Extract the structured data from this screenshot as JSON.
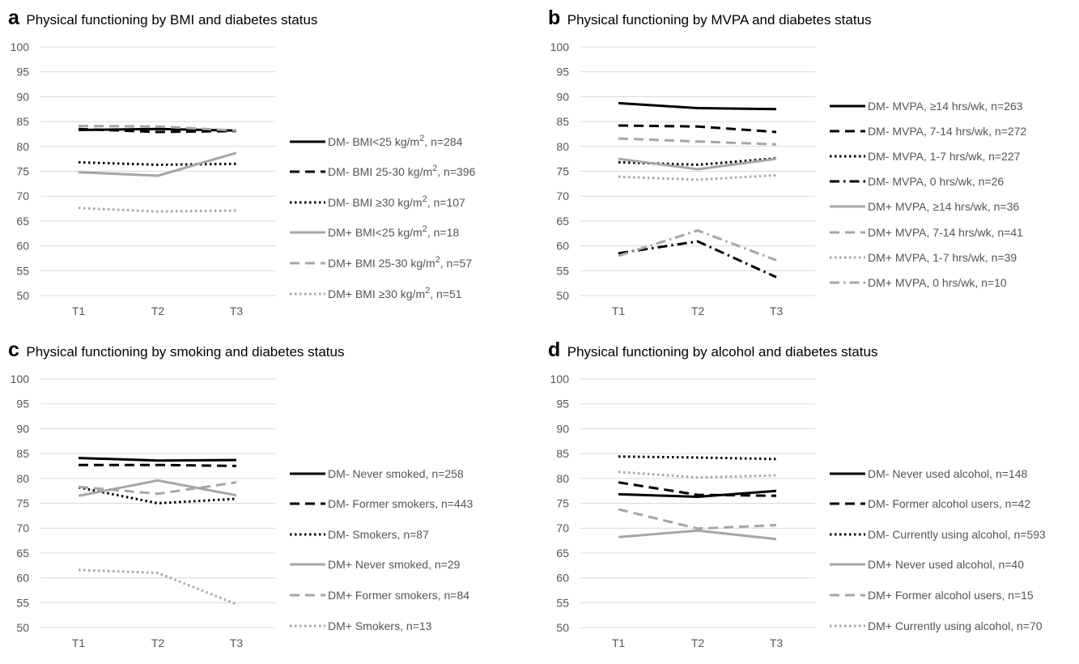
{
  "chart_data": [
    {
      "type": "line",
      "panel": "a",
      "title": "Physical functioning by BMI and diabetes status",
      "x": [
        "T1",
        "T2",
        "T3"
      ],
      "ylim": [
        50,
        100
      ],
      "yticks": [
        "100",
        "95",
        "90",
        "85",
        "80",
        "75",
        "70",
        "65",
        "60",
        "55",
        "50"
      ],
      "grid": true,
      "legend_position": "right",
      "series": [
        {
          "name": "DM- BMI<25 kg/m², n=284",
          "label_pre": "DM-  BMI<25 kg/m",
          "label_sup": "2",
          "label_post": ", n=284",
          "values": [
            83.3,
            83.5,
            83.2
          ],
          "color": "#000000",
          "dash": "solid"
        },
        {
          "name": "DM- BMI 25-30 kg/m², n=396",
          "label_pre": "DM-  BMI 25-30 kg/m",
          "label_sup": "2",
          "label_post": ", n=396",
          "values": [
            83.5,
            82.9,
            83.1
          ],
          "color": "#000000",
          "dash": "dash"
        },
        {
          "name": "DM- BMI ≥30 kg/m², n=107",
          "label_pre": "DM-  BMI ≥30 kg/m",
          "label_sup": "2",
          "label_post": ", n=107",
          "values": [
            76.8,
            76.3,
            76.5
          ],
          "color": "#000000",
          "dash": "dot"
        },
        {
          "name": "DM+ BMI<25 kg/m², n=18",
          "label_pre": "DM+ BMI<25 kg/m",
          "label_sup": "2",
          "label_post": ", n=18",
          "values": [
            74.8,
            74.1,
            78.7
          ],
          "color": "#a6a6a6",
          "dash": "solid"
        },
        {
          "name": "DM+ BMI 25-30 kg/m², n=57",
          "label_pre": "DM+ BMI 25-30 kg/m",
          "label_sup": "2",
          "label_post": ", n=57",
          "values": [
            84.1,
            84.0,
            83.2
          ],
          "color": "#a6a6a6",
          "dash": "dash"
        },
        {
          "name": "DM+ BMI ≥30 kg/m², n=51",
          "label_pre": "DM+ BMI ≥30 kg/m",
          "label_sup": "2",
          "label_post": ", n=51",
          "values": [
            67.6,
            66.9,
            67.1
          ],
          "color": "#a6a6a6",
          "dash": "dot"
        }
      ]
    },
    {
      "type": "line",
      "panel": "b",
      "title": "Physical functioning by MVPA and diabetes status",
      "x": [
        "T1",
        "T2",
        "T3"
      ],
      "ylim": [
        50,
        100
      ],
      "yticks": [
        "100",
        "95",
        "90",
        "85",
        "80",
        "75",
        "70",
        "65",
        "60",
        "55",
        "50"
      ],
      "grid": true,
      "legend_position": "right",
      "series": [
        {
          "name": "DM- MVPA, ≥14 hrs/wk, n=263",
          "label_pre": "DM-  MVPA, ≥14 hrs/wk, n=263",
          "values": [
            88.7,
            87.7,
            87.5
          ],
          "color": "#000000",
          "dash": "solid"
        },
        {
          "name": "DM- MVPA, 7-14 hrs/wk, n=272",
          "label_pre": "DM-  MVPA, 7-14 hrs/wk, n=272",
          "values": [
            84.2,
            84.0,
            82.9
          ],
          "color": "#000000",
          "dash": "dash"
        },
        {
          "name": "DM- MVPA, 1-7 hrs/wk, n=227",
          "label_pre": "DM-  MVPA, 1-7 hrs/wk, n=227",
          "values": [
            76.8,
            76.3,
            77.6
          ],
          "color": "#000000",
          "dash": "dot"
        },
        {
          "name": "DM- MVPA, 0 hrs/wk, n=26",
          "label_pre": "DM-  MVPA, 0 hrs/wk, n=26",
          "values": [
            58.5,
            60.9,
            53.7
          ],
          "color": "#000000",
          "dash": "dashdot"
        },
        {
          "name": "DM+ MVPA, ≥14 hrs/wk, n=36",
          "label_pre": "DM+ MVPA, ≥14 hrs/wk, n=36",
          "values": [
            77.5,
            75.4,
            77.5
          ],
          "color": "#a6a6a6",
          "dash": "solid"
        },
        {
          "name": "DM+ MVPA, 7-14 hrs/wk, n=41",
          "label_pre": "DM+ MVPA, 7-14 hrs/wk, n=41",
          "values": [
            81.6,
            81.0,
            80.4
          ],
          "color": "#a6a6a6",
          "dash": "dash"
        },
        {
          "name": "DM+ MVPA, 1-7 hrs/wk, n=39",
          "label_pre": "DM+ MVPA, 1-7 hrs/wk, n=39",
          "values": [
            73.9,
            73.3,
            74.2
          ],
          "color": "#a6a6a6",
          "dash": "dot"
        },
        {
          "name": "DM+ MVPA, 0 hrs/wk, n=10",
          "label_pre": "DM+ MVPA, 0 hrs/wk, n=10",
          "values": [
            58.0,
            63.1,
            57.1
          ],
          "color": "#a6a6a6",
          "dash": "dashdot"
        }
      ]
    },
    {
      "type": "line",
      "panel": "c",
      "title": "Physical functioning by smoking and diabetes status",
      "x": [
        "T1",
        "T2",
        "T3"
      ],
      "ylim": [
        50,
        100
      ],
      "yticks": [
        "100",
        "95",
        "90",
        "85",
        "80",
        "75",
        "70",
        "65",
        "60",
        "55",
        "50"
      ],
      "grid": true,
      "legend_position": "right",
      "series": [
        {
          "name": "DM- Never smoked, n=258",
          "label_pre": "DM-  Never smoked, n=258",
          "values": [
            84.1,
            83.6,
            83.7
          ],
          "color": "#000000",
          "dash": "solid"
        },
        {
          "name": "DM- Former smokers, n=443",
          "label_pre": "DM-  Former smokers, n=443",
          "values": [
            82.7,
            82.7,
            82.5
          ],
          "color": "#000000",
          "dash": "dash"
        },
        {
          "name": "DM- Smokers, n=87",
          "label_pre": "DM-  Smokers, n=87",
          "values": [
            78.2,
            75.0,
            75.9
          ],
          "color": "#000000",
          "dash": "dot"
        },
        {
          "name": "DM+ Never smoked, n=29",
          "label_pre": "DM+ Never smoked, n=29",
          "values": [
            76.5,
            79.6,
            76.6
          ],
          "color": "#a6a6a6",
          "dash": "solid"
        },
        {
          "name": "DM+ Former smokers, n=84",
          "label_pre": "DM+ Former smokers, n=84",
          "values": [
            78.3,
            76.9,
            79.2
          ],
          "color": "#a6a6a6",
          "dash": "dash"
        },
        {
          "name": "DM+ Smokers, n=13",
          "label_pre": "DM+ Smokers, n=13",
          "values": [
            61.6,
            61.0,
            54.7
          ],
          "color": "#a6a6a6",
          "dash": "dot"
        }
      ]
    },
    {
      "type": "line",
      "panel": "d",
      "title": "Physical functioning by alcohol and diabetes status",
      "x": [
        "T1",
        "T2",
        "T3"
      ],
      "ylim": [
        50,
        100
      ],
      "yticks": [
        "100",
        "95",
        "90",
        "85",
        "80",
        "75",
        "70",
        "65",
        "60",
        "55",
        "50"
      ],
      "grid": true,
      "legend_position": "right",
      "series": [
        {
          "name": "DM- Never used alcohol, n=148",
          "label_pre": "DM-  Never used alcohol, n=148",
          "values": [
            76.8,
            76.3,
            77.5
          ],
          "color": "#000000",
          "dash": "solid"
        },
        {
          "name": "DM- Former alcohol users, n=42",
          "label_pre": "DM-  Former alcohol users, n=42",
          "values": [
            79.2,
            76.7,
            76.5
          ],
          "color": "#000000",
          "dash": "dash"
        },
        {
          "name": "DM- Currently using alcohol, n=593",
          "label_pre": "DM-  Currently using alcohol, n=593",
          "values": [
            84.4,
            84.2,
            83.9
          ],
          "color": "#000000",
          "dash": "dot"
        },
        {
          "name": "DM+ Never used alcohol, n=40",
          "label_pre": "DM+ Never used alcohol, n=40",
          "values": [
            68.2,
            69.5,
            67.8
          ],
          "color": "#a6a6a6",
          "dash": "solid"
        },
        {
          "name": "DM+ Former alcohol users, n=15",
          "label_pre": "DM+ Former alcohol users, n=15",
          "values": [
            73.8,
            69.9,
            70.6
          ],
          "color": "#a6a6a6",
          "dash": "dash"
        },
        {
          "name": "DM+ Currently using alcohol, n=70",
          "label_pre": "DM+ Currently using alcohol, n=70",
          "values": [
            81.3,
            80.2,
            80.6
          ],
          "color": "#a6a6a6",
          "dash": "dot"
        }
      ]
    }
  ],
  "panels": [
    {
      "letter": "a",
      "title": "Physical functioning by BMI and diabetes status"
    },
    {
      "letter": "b",
      "title": "Physical functioning by MVPA and diabetes status"
    },
    {
      "letter": "c",
      "title": "Physical functioning by smoking and diabetes status"
    },
    {
      "letter": "d",
      "title": "Physical functioning by alcohol and diabetes status"
    }
  ]
}
